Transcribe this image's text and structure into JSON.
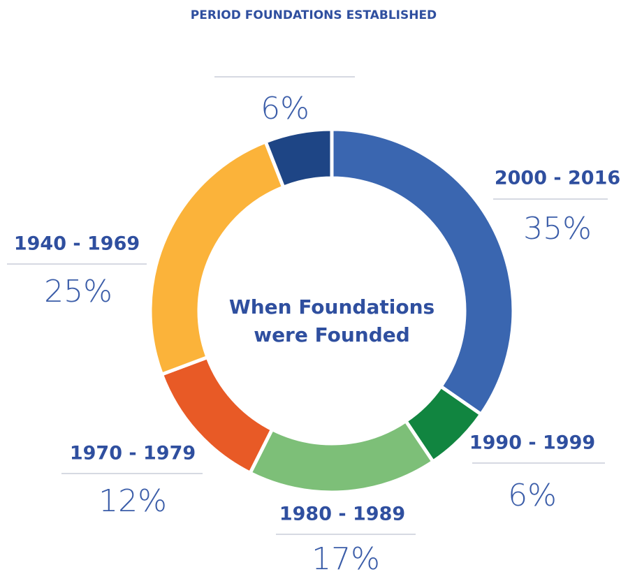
{
  "chart_data": {
    "type": "donut",
    "title": "PERIOD FOUNDATIONS ESTABLISHED",
    "center_label": "When Foundations were Founded",
    "categories": [
      "2000 - 2016",
      "1990 - 1999",
      "1980 - 1989",
      "1970 - 1979",
      "1940 - 1969",
      null
    ],
    "values": [
      35,
      6,
      17,
      12,
      25,
      6
    ],
    "value_labels": [
      "35%",
      "6%",
      "17%",
      "12%",
      "25%",
      "6%"
    ],
    "colors": [
      "#3a66b0",
      "#118540",
      "#7dbf78",
      "#e85a26",
      "#fbb33a",
      "#1e4585"
    ]
  }
}
